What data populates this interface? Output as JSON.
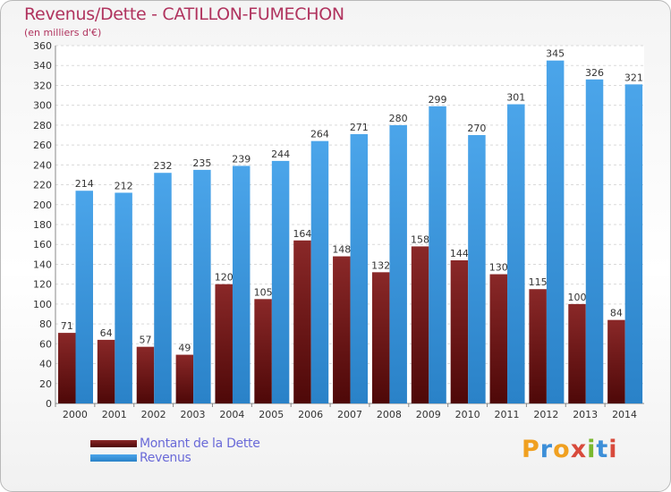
{
  "chart_data": {
    "type": "bar",
    "title": "Revenus/Dette - CATILLON-FUMECHON",
    "subtitle": "(en milliers d'€)",
    "categories": [
      "2000",
      "2001",
      "2002",
      "2003",
      "2004",
      "2005",
      "2006",
      "2007",
      "2008",
      "2009",
      "2010",
      "2011",
      "2012",
      "2013",
      "2014"
    ],
    "series": [
      {
        "name": "Montant de la Dette",
        "color": "#7a1a1a",
        "values": [
          71,
          64,
          57,
          49,
          120,
          105,
          164,
          148,
          132,
          158,
          144,
          130,
          115,
          100,
          84
        ]
      },
      {
        "name": "Revenus",
        "color": "#3d9ae0",
        "values": [
          214,
          212,
          232,
          235,
          239,
          244,
          264,
          271,
          280,
          299,
          270,
          301,
          345,
          326,
          321
        ]
      }
    ],
    "ylim": [
      0,
      360
    ],
    "ytick_step": 20,
    "grid": true,
    "legend_position": "bottom-left"
  },
  "brand": {
    "letters": [
      "P",
      "r",
      "o",
      "x",
      "i",
      "t",
      "i"
    ],
    "colors": [
      "#f0a020",
      "#3d8fd8",
      "#f0a020",
      "#d84a3c",
      "#7ab82e",
      "#3d8fd8",
      "#d84a3c"
    ]
  }
}
